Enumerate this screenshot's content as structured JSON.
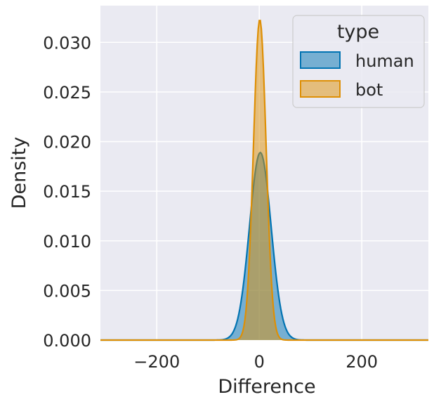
{
  "chart_data": {
    "type": "area",
    "title": "",
    "xlabel": "Difference",
    "ylabel": "Density",
    "xlim": [
      -310,
      330
    ],
    "ylim": [
      0,
      0.0337
    ],
    "xticks": [
      -200,
      0,
      200
    ],
    "xtick_labels": [
      "−200",
      "0",
      "200"
    ],
    "yticks": [
      0,
      0.005,
      0.01,
      0.015,
      0.02,
      0.025,
      0.03
    ],
    "ytick_labels": [
      "0.000",
      "0.005",
      "0.010",
      "0.015",
      "0.020",
      "0.025",
      "0.030"
    ],
    "grid": true,
    "legend": {
      "title": "type",
      "placement": "top-right"
    },
    "series": [
      {
        "name": "human",
        "color": "#0173b2",
        "distribution": "gaussian",
        "mean": 2,
        "peak_density": 0.0189
      },
      {
        "name": "bot",
        "color": "#de8f05",
        "distribution": "gaussian",
        "mean": 1,
        "peak_density": 0.0323
      }
    ]
  },
  "colors": {
    "plot_background": "#eaeaf2",
    "grid": "#ffffff",
    "text": "#262626"
  }
}
